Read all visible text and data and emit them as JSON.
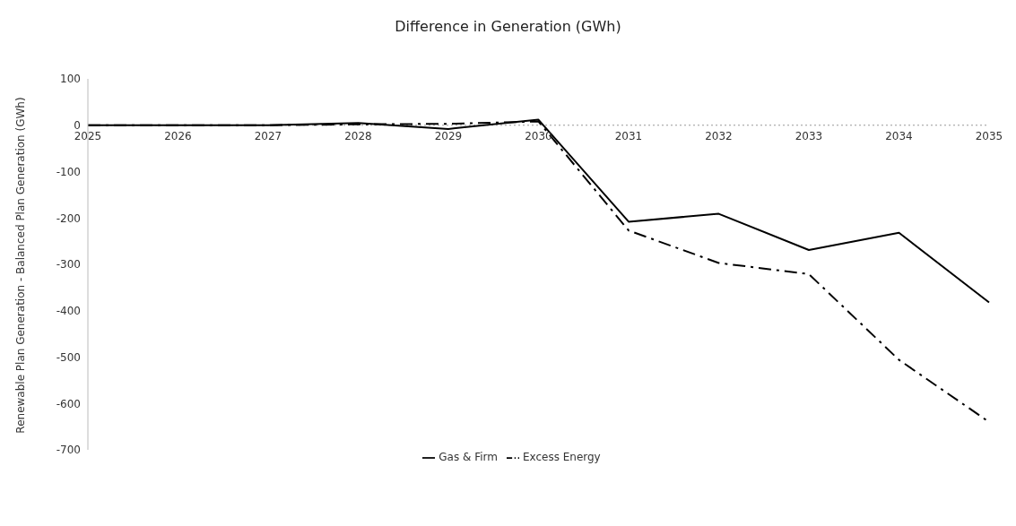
{
  "chart_data": {
    "type": "line",
    "title": "Difference in Generation (GWh)",
    "ylabel": "Renewable Plan Generation - Balanced Plan Generation (GWh)",
    "categories": [
      "2025",
      "2026",
      "2027",
      "2028",
      "2029",
      "2030",
      "2031",
      "2032",
      "2033",
      "2034",
      "2035"
    ],
    "series": [
      {
        "name": "Gas & Firm",
        "color": "#000000",
        "line_style": "solid",
        "values": [
          0,
          0,
          0,
          5,
          -8,
          12,
          -208,
          -191,
          -269,
          -232,
          -382
        ]
      },
      {
        "name": "Excess Energy",
        "color": "#000000",
        "line_style": "dashdot",
        "values": [
          0,
          0,
          0,
          2,
          3,
          8,
          -227,
          -297,
          -321,
          -506,
          -640
        ]
      }
    ],
    "ylim": [
      -700,
      100
    ],
    "yticks": [
      100,
      0,
      -100,
      -200,
      -300,
      -400,
      -500,
      -600,
      -700
    ],
    "ref_lines": [
      {
        "axis": "y",
        "value": 0,
        "color": "#999999",
        "line_style": "dotted"
      }
    ],
    "grid": false,
    "legend": "bottom",
    "marker": "none"
  }
}
